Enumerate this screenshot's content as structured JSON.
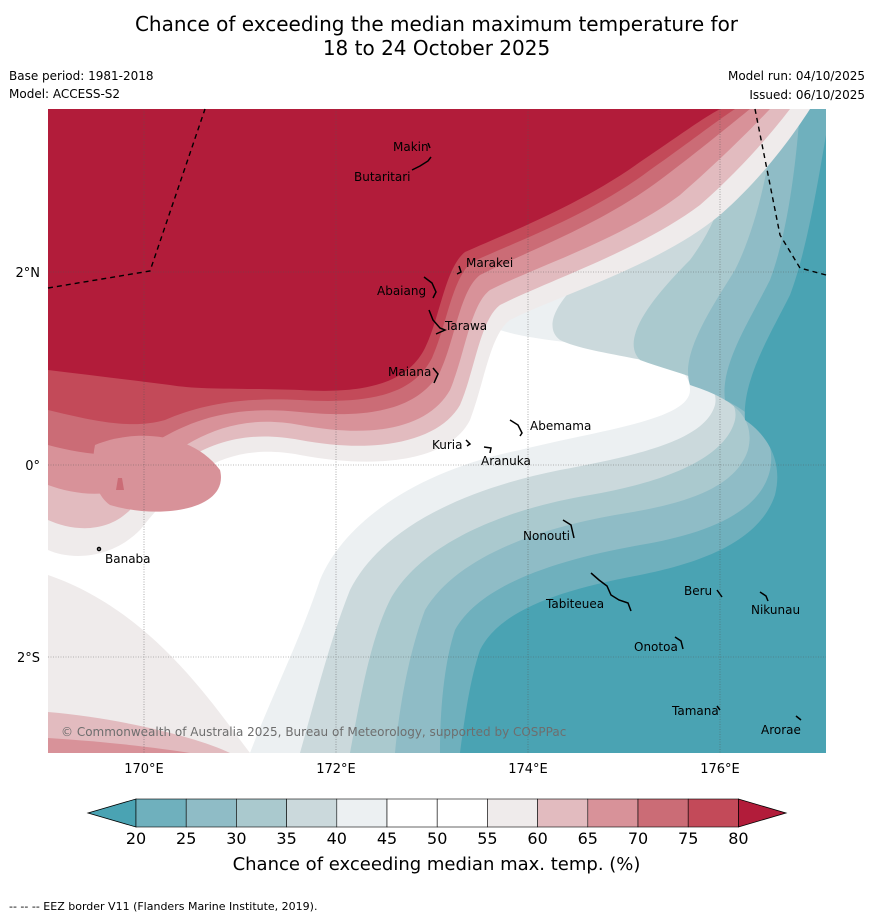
{
  "header": {
    "title_line1": "Chance of exceeding the median maximum temperature for",
    "title_line2": "18 to 24 October 2025",
    "base_period": "Base period: 1981-2018",
    "model": "Model: ACCESS-S2",
    "model_run": "Model run: 04/10/2025",
    "issued": "Issued: 06/10/2025"
  },
  "map": {
    "lon_labels": [
      "170°E",
      "172°E",
      "174°E",
      "176°E"
    ],
    "lat_labels": [
      "2°N",
      "0°",
      "2°S"
    ],
    "copyright": "© Commonwealth of Australia 2025, Bureau of Meteorology, supported by COSPPac",
    "places": [
      "Makin",
      "Butaritari",
      "Marakei",
      "Abaiang",
      "Tarawa",
      "Maiana",
      "Abemama",
      "Kuria",
      "Aranuka",
      "Banaba",
      "Nonouti",
      "Tabiteuea",
      "Beru",
      "Nikunau",
      "Onotoa",
      "Tamana",
      "Arorae"
    ]
  },
  "colorbar": {
    "ticks": [
      "20",
      "25",
      "30",
      "35",
      "40",
      "45",
      "50",
      "55",
      "60",
      "65",
      "70",
      "75",
      "80"
    ],
    "colors": [
      "#4aa3b3",
      "#6fb0bd",
      "#8fbcc6",
      "#aac9ce",
      "#cbd9dc",
      "#ecf0f2",
      "#ffffff",
      "#ffffff",
      "#efebeb",
      "#e2bbbf",
      "#d89299",
      "#cb6c76",
      "#c34a59",
      "#b21c3a"
    ],
    "label": "Chance of exceeding median max. temp. (%)"
  },
  "footer": {
    "eez_note": "--  --  -- EEZ border V11 (Flanders Marine Institute, 2019)."
  }
}
